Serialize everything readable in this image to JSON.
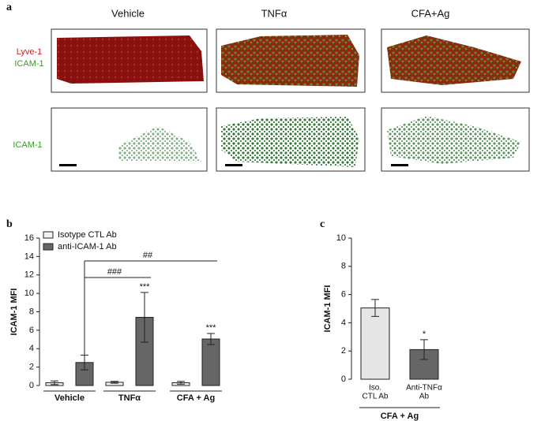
{
  "panel_a": {
    "panel_label": "a",
    "columns": [
      "Vehicle",
      "TNFα",
      "CFA+Ag"
    ],
    "row_labels": [
      [
        "Lyve-1",
        "ICAM-1"
      ],
      [
        "ICAM-1"
      ]
    ]
  },
  "chart_data": [
    {
      "type": "bar",
      "panel_label": "b",
      "ylabel": "ICAM-1 MFI",
      "categories": [
        "Vehicle",
        "TNFα",
        "CFA + Ag"
      ],
      "series": [
        {
          "name": "Isotype CTL Ab",
          "color": "#f2f2f2",
          "values": [
            0.3,
            0.35,
            0.3
          ],
          "errors": [
            0.2,
            0.1,
            0.15
          ]
        },
        {
          "name": "anti-ICAM-1 Ab",
          "color": "#666666",
          "values": [
            2.5,
            7.4,
            5.05
          ],
          "errors": [
            0.8,
            2.7,
            0.6
          ],
          "significance": [
            null,
            "***",
            "***"
          ]
        }
      ],
      "comparisons": [
        {
          "label": "###",
          "categories": [
            "Vehicle",
            "TNFα"
          ]
        },
        {
          "label": "##",
          "categories": [
            "Vehicle",
            "CFA + Ag"
          ]
        }
      ],
      "ylim": [
        0,
        16
      ],
      "yticks": [
        0,
        2,
        4,
        6,
        8,
        10,
        12,
        14,
        16
      ]
    },
    {
      "type": "bar",
      "panel_label": "c",
      "ylabel": "ICAM-1 MFI",
      "categories": [
        [
          "Iso.",
          "CTL Ab"
        ],
        [
          "Anti-TNFα",
          "Ab"
        ]
      ],
      "values": [
        5.05,
        2.1
      ],
      "errors": [
        0.6,
        0.7
      ],
      "colors": [
        "#e6e6e6",
        "#666666"
      ],
      "significance": [
        null,
        "*"
      ],
      "group_label": "CFA + Ag",
      "ylim": [
        0,
        10
      ],
      "yticks": [
        0,
        2,
        4,
        6,
        8,
        10
      ]
    }
  ]
}
